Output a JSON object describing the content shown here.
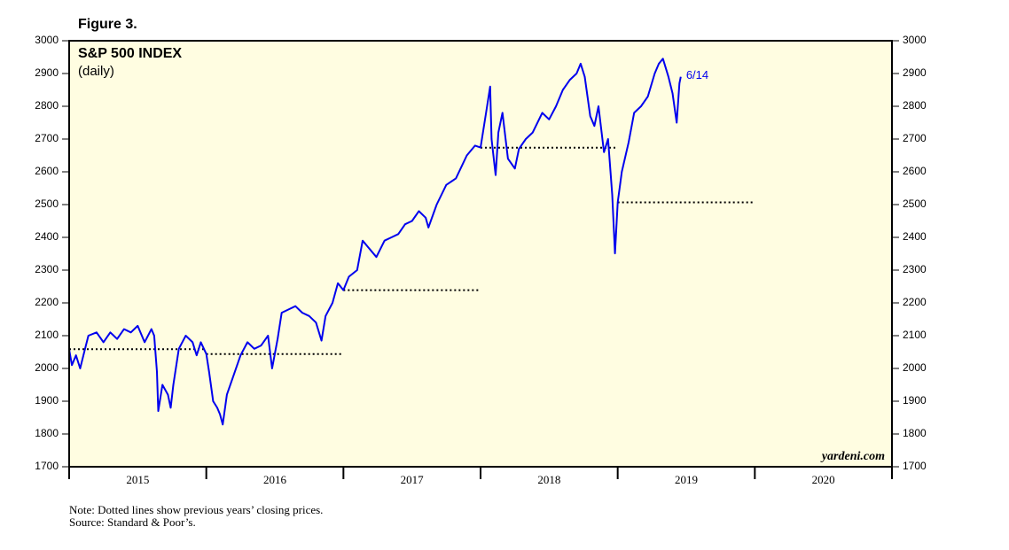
{
  "chart_data": {
    "type": "line",
    "figure_label": "Figure 3.",
    "title": "S&P 500 INDEX",
    "subtitle": "(daily)",
    "source_mark": "yardeni.com",
    "notes": [
      "Note: Dotted lines show previous years’ closing prices.",
      "Source: Standard & Poor’s."
    ],
    "end_label": "6/14",
    "xlim": [
      2015,
      2021
    ],
    "xticks": [
      2015,
      2016,
      2017,
      2018,
      2019,
      2020,
      2021
    ],
    "year_labels": [
      {
        "value": 2015.5,
        "label": "2015"
      },
      {
        "value": 2016.5,
        "label": "2016"
      },
      {
        "value": 2017.5,
        "label": "2017"
      },
      {
        "value": 2018.5,
        "label": "2018"
      },
      {
        "value": 2019.5,
        "label": "2019"
      },
      {
        "value": 2020.5,
        "label": "2020"
      }
    ],
    "ylim": [
      1700,
      3000
    ],
    "yticks": [
      1700,
      1800,
      1900,
      2000,
      2100,
      2200,
      2300,
      2400,
      2500,
      2600,
      2700,
      2800,
      2900,
      3000
    ],
    "background": "#fffde1",
    "series": [
      {
        "name": "S&P 500",
        "color": "#0000ee",
        "x": [
          2015.0,
          2015.02,
          2015.05,
          2015.08,
          2015.11,
          2015.14,
          2015.2,
          2015.25,
          2015.3,
          2015.35,
          2015.4,
          2015.45,
          2015.5,
          2015.55,
          2015.6,
          2015.62,
          2015.64,
          2015.65,
          2015.68,
          2015.72,
          2015.74,
          2015.76,
          2015.8,
          2015.85,
          2015.9,
          2015.93,
          2015.96,
          2016.0,
          2016.02,
          2016.05,
          2016.08,
          2016.1,
          2016.12,
          2016.15,
          2016.2,
          2016.25,
          2016.3,
          2016.35,
          2016.4,
          2016.45,
          2016.48,
          2016.52,
          2016.55,
          2016.6,
          2016.65,
          2016.7,
          2016.75,
          2016.8,
          2016.84,
          2016.87,
          2016.92,
          2016.96,
          2017.0,
          2017.04,
          2017.1,
          2017.14,
          2017.18,
          2017.24,
          2017.3,
          2017.35,
          2017.4,
          2017.45,
          2017.5,
          2017.55,
          2017.6,
          2017.62,
          2017.68,
          2017.75,
          2017.82,
          2017.9,
          2017.96,
          2018.0,
          2018.04,
          2018.07,
          2018.08,
          2018.11,
          2018.13,
          2018.16,
          2018.2,
          2018.25,
          2018.28,
          2018.33,
          2018.38,
          2018.45,
          2018.5,
          2018.55,
          2018.6,
          2018.65,
          2018.7,
          2018.73,
          2018.76,
          2018.8,
          2018.83,
          2018.86,
          2018.9,
          2018.93,
          2018.96,
          2018.98,
          2019.0,
          2019.03,
          2019.08,
          2019.12,
          2019.17,
          2019.22,
          2019.27,
          2019.3,
          2019.33,
          2019.37,
          2019.4,
          2019.43,
          2019.45,
          2019.46
        ],
        "values": [
          2058,
          2010,
          2040,
          2000,
          2050,
          2100,
          2110,
          2080,
          2110,
          2090,
          2120,
          2110,
          2130,
          2080,
          2120,
          2100,
          1990,
          1870,
          1950,
          1920,
          1880,
          1950,
          2060,
          2100,
          2080,
          2040,
          2080,
          2044,
          1990,
          1900,
          1880,
          1860,
          1829,
          1920,
          1980,
          2040,
          2080,
          2060,
          2070,
          2100,
          2000,
          2090,
          2170,
          2180,
          2190,
          2170,
          2160,
          2140,
          2085,
          2160,
          2200,
          2260,
          2239,
          2280,
          2300,
          2390,
          2370,
          2340,
          2390,
          2400,
          2410,
          2440,
          2450,
          2480,
          2460,
          2430,
          2500,
          2560,
          2580,
          2650,
          2680,
          2674,
          2780,
          2860,
          2700,
          2590,
          2720,
          2780,
          2640,
          2610,
          2670,
          2700,
          2720,
          2780,
          2760,
          2800,
          2850,
          2880,
          2900,
          2930,
          2890,
          2770,
          2740,
          2800,
          2660,
          2700,
          2530,
          2351,
          2507,
          2600,
          2690,
          2780,
          2800,
          2830,
          2900,
          2930,
          2945,
          2890,
          2840,
          2750,
          2870,
          2890
        ]
      }
    ],
    "reference_lines": [
      {
        "from": 2015,
        "to": 2016,
        "value": 2058.9
      },
      {
        "from": 2016,
        "to": 2017,
        "value": 2043.9
      },
      {
        "from": 2017,
        "to": 2018,
        "value": 2238.8
      },
      {
        "from": 2018,
        "to": 2019,
        "value": 2673.6
      },
      {
        "from": 2019,
        "to": 2020,
        "value": 2506.9
      }
    ]
  }
}
